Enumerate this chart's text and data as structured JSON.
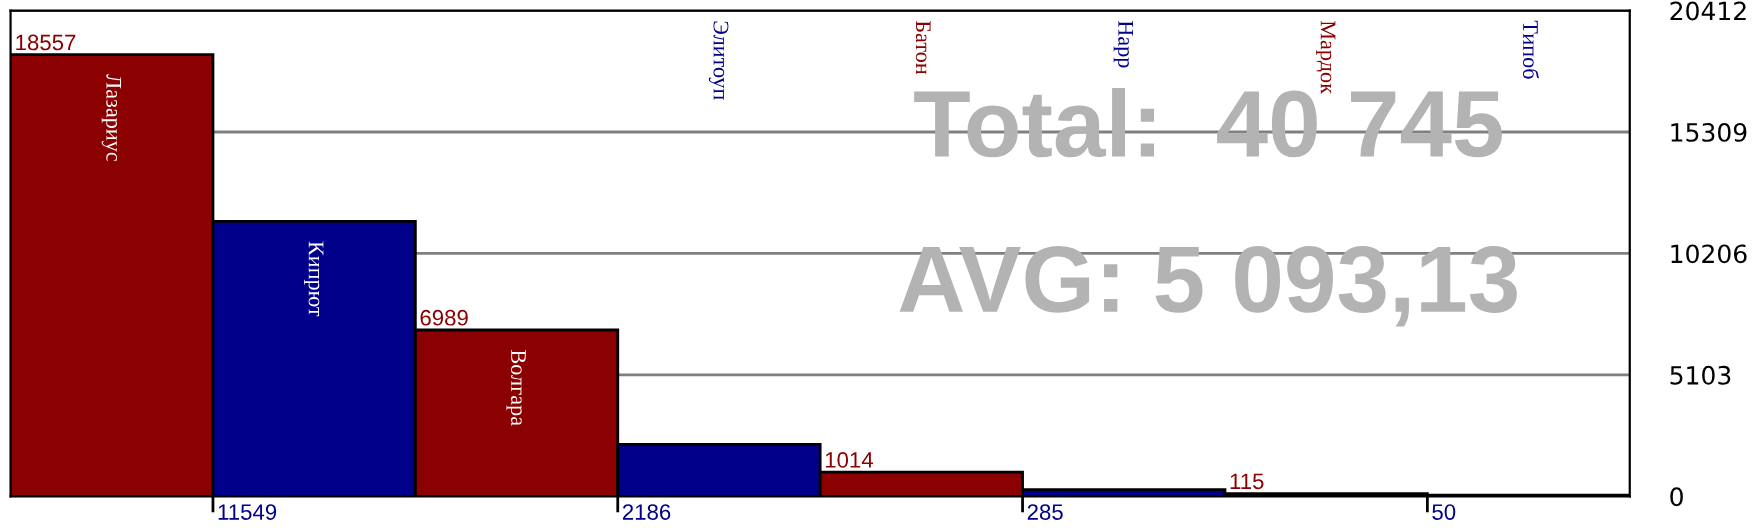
{
  "chart_data": {
    "type": "bar",
    "categories": [
      "Лазариус",
      "Кипрют",
      "Волгара",
      "Элитоуп",
      "Батон",
      "Нарр",
      "Мардок",
      "Типоб"
    ],
    "values": [
      18557,
      11549,
      6989,
      2186,
      1014,
      285,
      115,
      50
    ],
    "colors": [
      "#8b0000",
      "#00008b",
      "#8b0000",
      "#00008b",
      "#8b0000",
      "#00008b",
      "#8b0000",
      "#00008b"
    ],
    "ylim": [
      0,
      20412
    ],
    "yticks": [
      0,
      5103,
      10206,
      15309,
      20412
    ],
    "grid": "y",
    "data_labels": true,
    "annotations": [
      "Total:  40 745",
      "AVG: 5 093,13"
    ]
  }
}
